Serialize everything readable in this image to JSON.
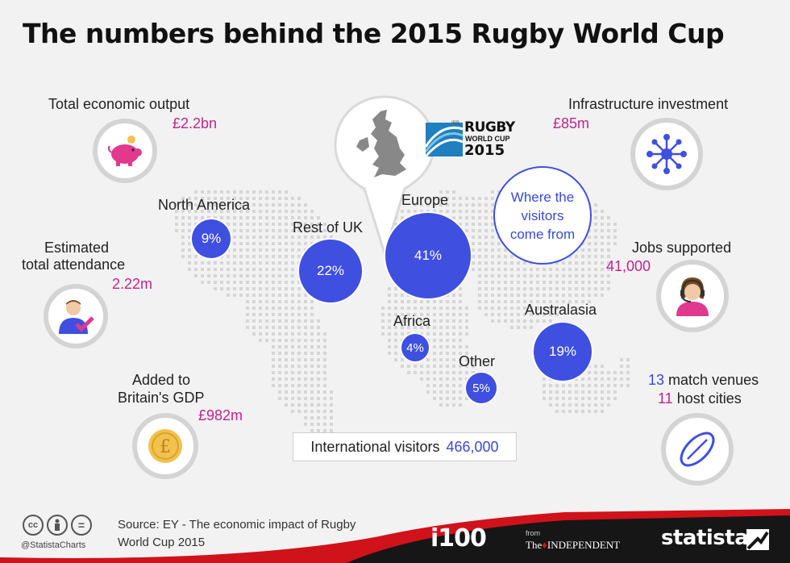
{
  "title": "The numbers behind the 2015 Rugby World Cup",
  "logo": {
    "line1": "RUGBY",
    "line2": "WORLD CUP",
    "line3": "2015",
    "badge": "IRB"
  },
  "visitors_heading": "Where the visitors come from",
  "regions": [
    {
      "name": "North America",
      "share": "9%"
    },
    {
      "name": "Rest of UK",
      "share": "22%"
    },
    {
      "name": "Europe",
      "share": "41%"
    },
    {
      "name": "Africa",
      "share": "4%"
    },
    {
      "name": "Other",
      "share": "5%"
    },
    {
      "name": "Australasia",
      "share": "19%"
    }
  ],
  "stats": {
    "economic_output": {
      "label": "Total economic output",
      "value": "£2.2bn",
      "icon": "piggy-bank-icon"
    },
    "attendance": {
      "label_line1": "Estimated",
      "label_line2": "total attendance",
      "value": "2.22m",
      "icon": "person-check-icon"
    },
    "gdp": {
      "label_line1": "Added to",
      "label_line2": "Britain's GDP",
      "value": "£982m",
      "icon": "pound-coin-icon"
    },
    "infrastructure": {
      "label": "Infrastructure investment",
      "value": "£85m",
      "icon": "network-icon"
    },
    "jobs": {
      "label": "Jobs supported",
      "value": "41,000",
      "icon": "headset-operator-icon"
    },
    "venues": {
      "venues_num": "13",
      "venues_text": "match venues",
      "cities_num": "11",
      "cities_text": "host cities",
      "icon": "rugby-ball-icon"
    }
  },
  "international_visitors": {
    "label": "International visitors",
    "value": "466,000"
  },
  "footer": {
    "source": "Source: EY - The economic impact of Rugby World Cup 2015",
    "handle": "@StatistaCharts",
    "brand_i100": "i100",
    "from": "from",
    "independent": "INDEPENDENT",
    "the": "The",
    "statista": "statista"
  },
  "colors": {
    "bubble": "#3f4fe0",
    "accent_pink": "#c2238e",
    "footer_red": "#d0121b",
    "footer_dark": "#161616"
  }
}
